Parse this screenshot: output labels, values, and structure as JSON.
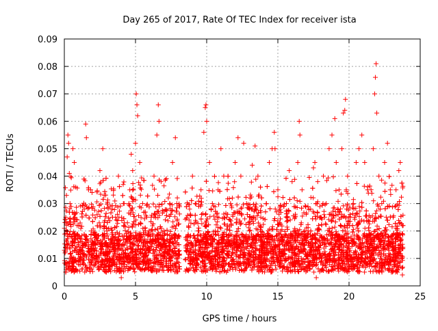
{
  "chart_data": {
    "type": "scatter",
    "title": "Day 265 of 2017, Rate Of TEC Index for receiver ista",
    "xlabel": "GPS time / hours",
    "ylabel": "ROTI / TECUs",
    "xlim": [
      0,
      25
    ],
    "ylim": [
      0,
      0.09
    ],
    "x_ticks": [
      0,
      5,
      10,
      15,
      20,
      25
    ],
    "x_tick_labels": [
      "0",
      "5",
      "10",
      "15",
      "20",
      "25"
    ],
    "y_ticks": [
      0,
      0.01,
      0.02,
      0.03,
      0.04,
      0.05,
      0.06,
      0.07,
      0.08,
      0.09
    ],
    "y_tick_labels": [
      "0",
      "0.01",
      "0.02",
      "0.03",
      "0.04",
      "0.05",
      "0.06",
      "0.07",
      "0.08",
      "0.09"
    ],
    "grid": true,
    "marker": "+",
    "color": "#ff0000",
    "data_gap_hours": [
      8.1,
      8.5
    ],
    "series": [
      {
        "points": [
          [
            0.05,
            0.012
          ],
          [
            0.1,
            0.025
          ],
          [
            0.15,
            0.033
          ],
          [
            0.2,
            0.047
          ],
          [
            0.25,
            0.055
          ],
          [
            0.3,
            0.052
          ],
          [
            0.35,
            0.041
          ],
          [
            0.4,
            0.03
          ],
          [
            0.5,
            0.018
          ],
          [
            0.6,
            0.05
          ],
          [
            0.7,
            0.045
          ],
          [
            0.8,
            0.036
          ],
          [
            0.9,
            0.022
          ],
          [
            1.0,
            0.015
          ],
          [
            1.2,
            0.01
          ],
          [
            1.4,
            0.028
          ],
          [
            1.5,
            0.059
          ],
          [
            1.55,
            0.054
          ],
          [
            1.7,
            0.035
          ],
          [
            1.9,
            0.02
          ],
          [
            2.1,
            0.013
          ],
          [
            2.3,
            0.026
          ],
          [
            2.5,
            0.042
          ],
          [
            2.7,
            0.05
          ],
          [
            2.8,
            0.033
          ],
          [
            3.0,
            0.02
          ],
          [
            3.2,
            0.01
          ],
          [
            3.4,
            0.018
          ],
          [
            3.6,
            0.025
          ],
          [
            3.8,
            0.04
          ],
          [
            3.9,
            0.009
          ],
          [
            4.0,
            0.003
          ],
          [
            4.2,
            0.03
          ],
          [
            4.4,
            0.017
          ],
          [
            4.6,
            0.035
          ],
          [
            4.7,
            0.048
          ],
          [
            4.8,
            0.042
          ],
          [
            5.0,
            0.052
          ],
          [
            5.05,
            0.07
          ],
          [
            5.1,
            0.066
          ],
          [
            5.15,
            0.062
          ],
          [
            5.3,
            0.045
          ],
          [
            5.5,
            0.03
          ],
          [
            5.7,
            0.02
          ],
          [
            5.9,
            0.014
          ],
          [
            6.1,
            0.025
          ],
          [
            6.3,
            0.04
          ],
          [
            6.5,
            0.055
          ],
          [
            6.6,
            0.066
          ],
          [
            6.65,
            0.06
          ],
          [
            6.8,
            0.038
          ],
          [
            7.0,
            0.02
          ],
          [
            7.2,
            0.012
          ],
          [
            7.4,
            0.03
          ],
          [
            7.6,
            0.045
          ],
          [
            7.8,
            0.054
          ],
          [
            7.9,
            0.03
          ],
          [
            8.0,
            0.018
          ],
          [
            8.05,
            0.007
          ],
          [
            8.6,
            0.015
          ],
          [
            8.8,
            0.028
          ],
          [
            9.0,
            0.04
          ],
          [
            9.2,
            0.03
          ],
          [
            9.4,
            0.02
          ],
          [
            9.6,
            0.035
          ],
          [
            9.8,
            0.056
          ],
          [
            9.9,
            0.065
          ],
          [
            9.95,
            0.066
          ],
          [
            10.0,
            0.06
          ],
          [
            10.2,
            0.045
          ],
          [
            10.4,
            0.03
          ],
          [
            10.6,
            0.02
          ],
          [
            10.8,
            0.035
          ],
          [
            11.0,
            0.05
          ],
          [
            11.2,
            0.04
          ],
          [
            11.4,
            0.025
          ],
          [
            11.6,
            0.015
          ],
          [
            11.8,
            0.032
          ],
          [
            12.0,
            0.045
          ],
          [
            12.2,
            0.054
          ],
          [
            12.4,
            0.04
          ],
          [
            12.6,
            0.052
          ],
          [
            12.8,
            0.03
          ],
          [
            13.0,
            0.02
          ],
          [
            13.2,
            0.044
          ],
          [
            13.4,
            0.051
          ],
          [
            13.6,
            0.04
          ],
          [
            13.8,
            0.025
          ],
          [
            14.0,
            0.015
          ],
          [
            14.2,
            0.03
          ],
          [
            14.4,
            0.045
          ],
          [
            14.6,
            0.05
          ],
          [
            14.75,
            0.056
          ],
          [
            14.8,
            0.05
          ],
          [
            15.0,
            0.035
          ],
          [
            15.2,
            0.02
          ],
          [
            15.4,
            0.012
          ],
          [
            15.6,
            0.03
          ],
          [
            15.8,
            0.042
          ],
          [
            16.0,
            0.038
          ],
          [
            16.2,
            0.025
          ],
          [
            16.4,
            0.045
          ],
          [
            16.5,
            0.06
          ],
          [
            16.55,
            0.055
          ],
          [
            16.7,
            0.035
          ],
          [
            16.9,
            0.02
          ],
          [
            17.1,
            0.01
          ],
          [
            17.3,
            0.028
          ],
          [
            17.5,
            0.043
          ],
          [
            17.6,
            0.045
          ],
          [
            17.7,
            0.003
          ],
          [
            17.8,
            0.038
          ],
          [
            18.0,
            0.025
          ],
          [
            18.2,
            0.04
          ],
          [
            18.4,
            0.03
          ],
          [
            18.6,
            0.05
          ],
          [
            18.8,
            0.055
          ],
          [
            19.0,
            0.061
          ],
          [
            19.1,
            0.045
          ],
          [
            19.3,
            0.035
          ],
          [
            19.5,
            0.05
          ],
          [
            19.6,
            0.063
          ],
          [
            19.7,
            0.064
          ],
          [
            19.75,
            0.068
          ],
          [
            19.9,
            0.04
          ],
          [
            20.1,
            0.025
          ],
          [
            20.3,
            0.03
          ],
          [
            20.5,
            0.045
          ],
          [
            20.7,
            0.05
          ],
          [
            20.9,
            0.055
          ],
          [
            21.1,
            0.045
          ],
          [
            21.3,
            0.035
          ],
          [
            21.5,
            0.025
          ],
          [
            21.7,
            0.05
          ],
          [
            21.8,
            0.07
          ],
          [
            21.85,
            0.076
          ],
          [
            21.9,
            0.081
          ],
          [
            21.95,
            0.063
          ],
          [
            22.1,
            0.04
          ],
          [
            22.3,
            0.03
          ],
          [
            22.5,
            0.045
          ],
          [
            22.7,
            0.052
          ],
          [
            22.9,
            0.035
          ],
          [
            23.1,
            0.025
          ],
          [
            23.3,
            0.035
          ],
          [
            23.5,
            0.042
          ],
          [
            23.6,
            0.045
          ],
          [
            23.7,
            0.01
          ],
          [
            23.75,
            0.004
          ],
          [
            23.8,
            0.022
          ]
        ]
      }
    ]
  }
}
